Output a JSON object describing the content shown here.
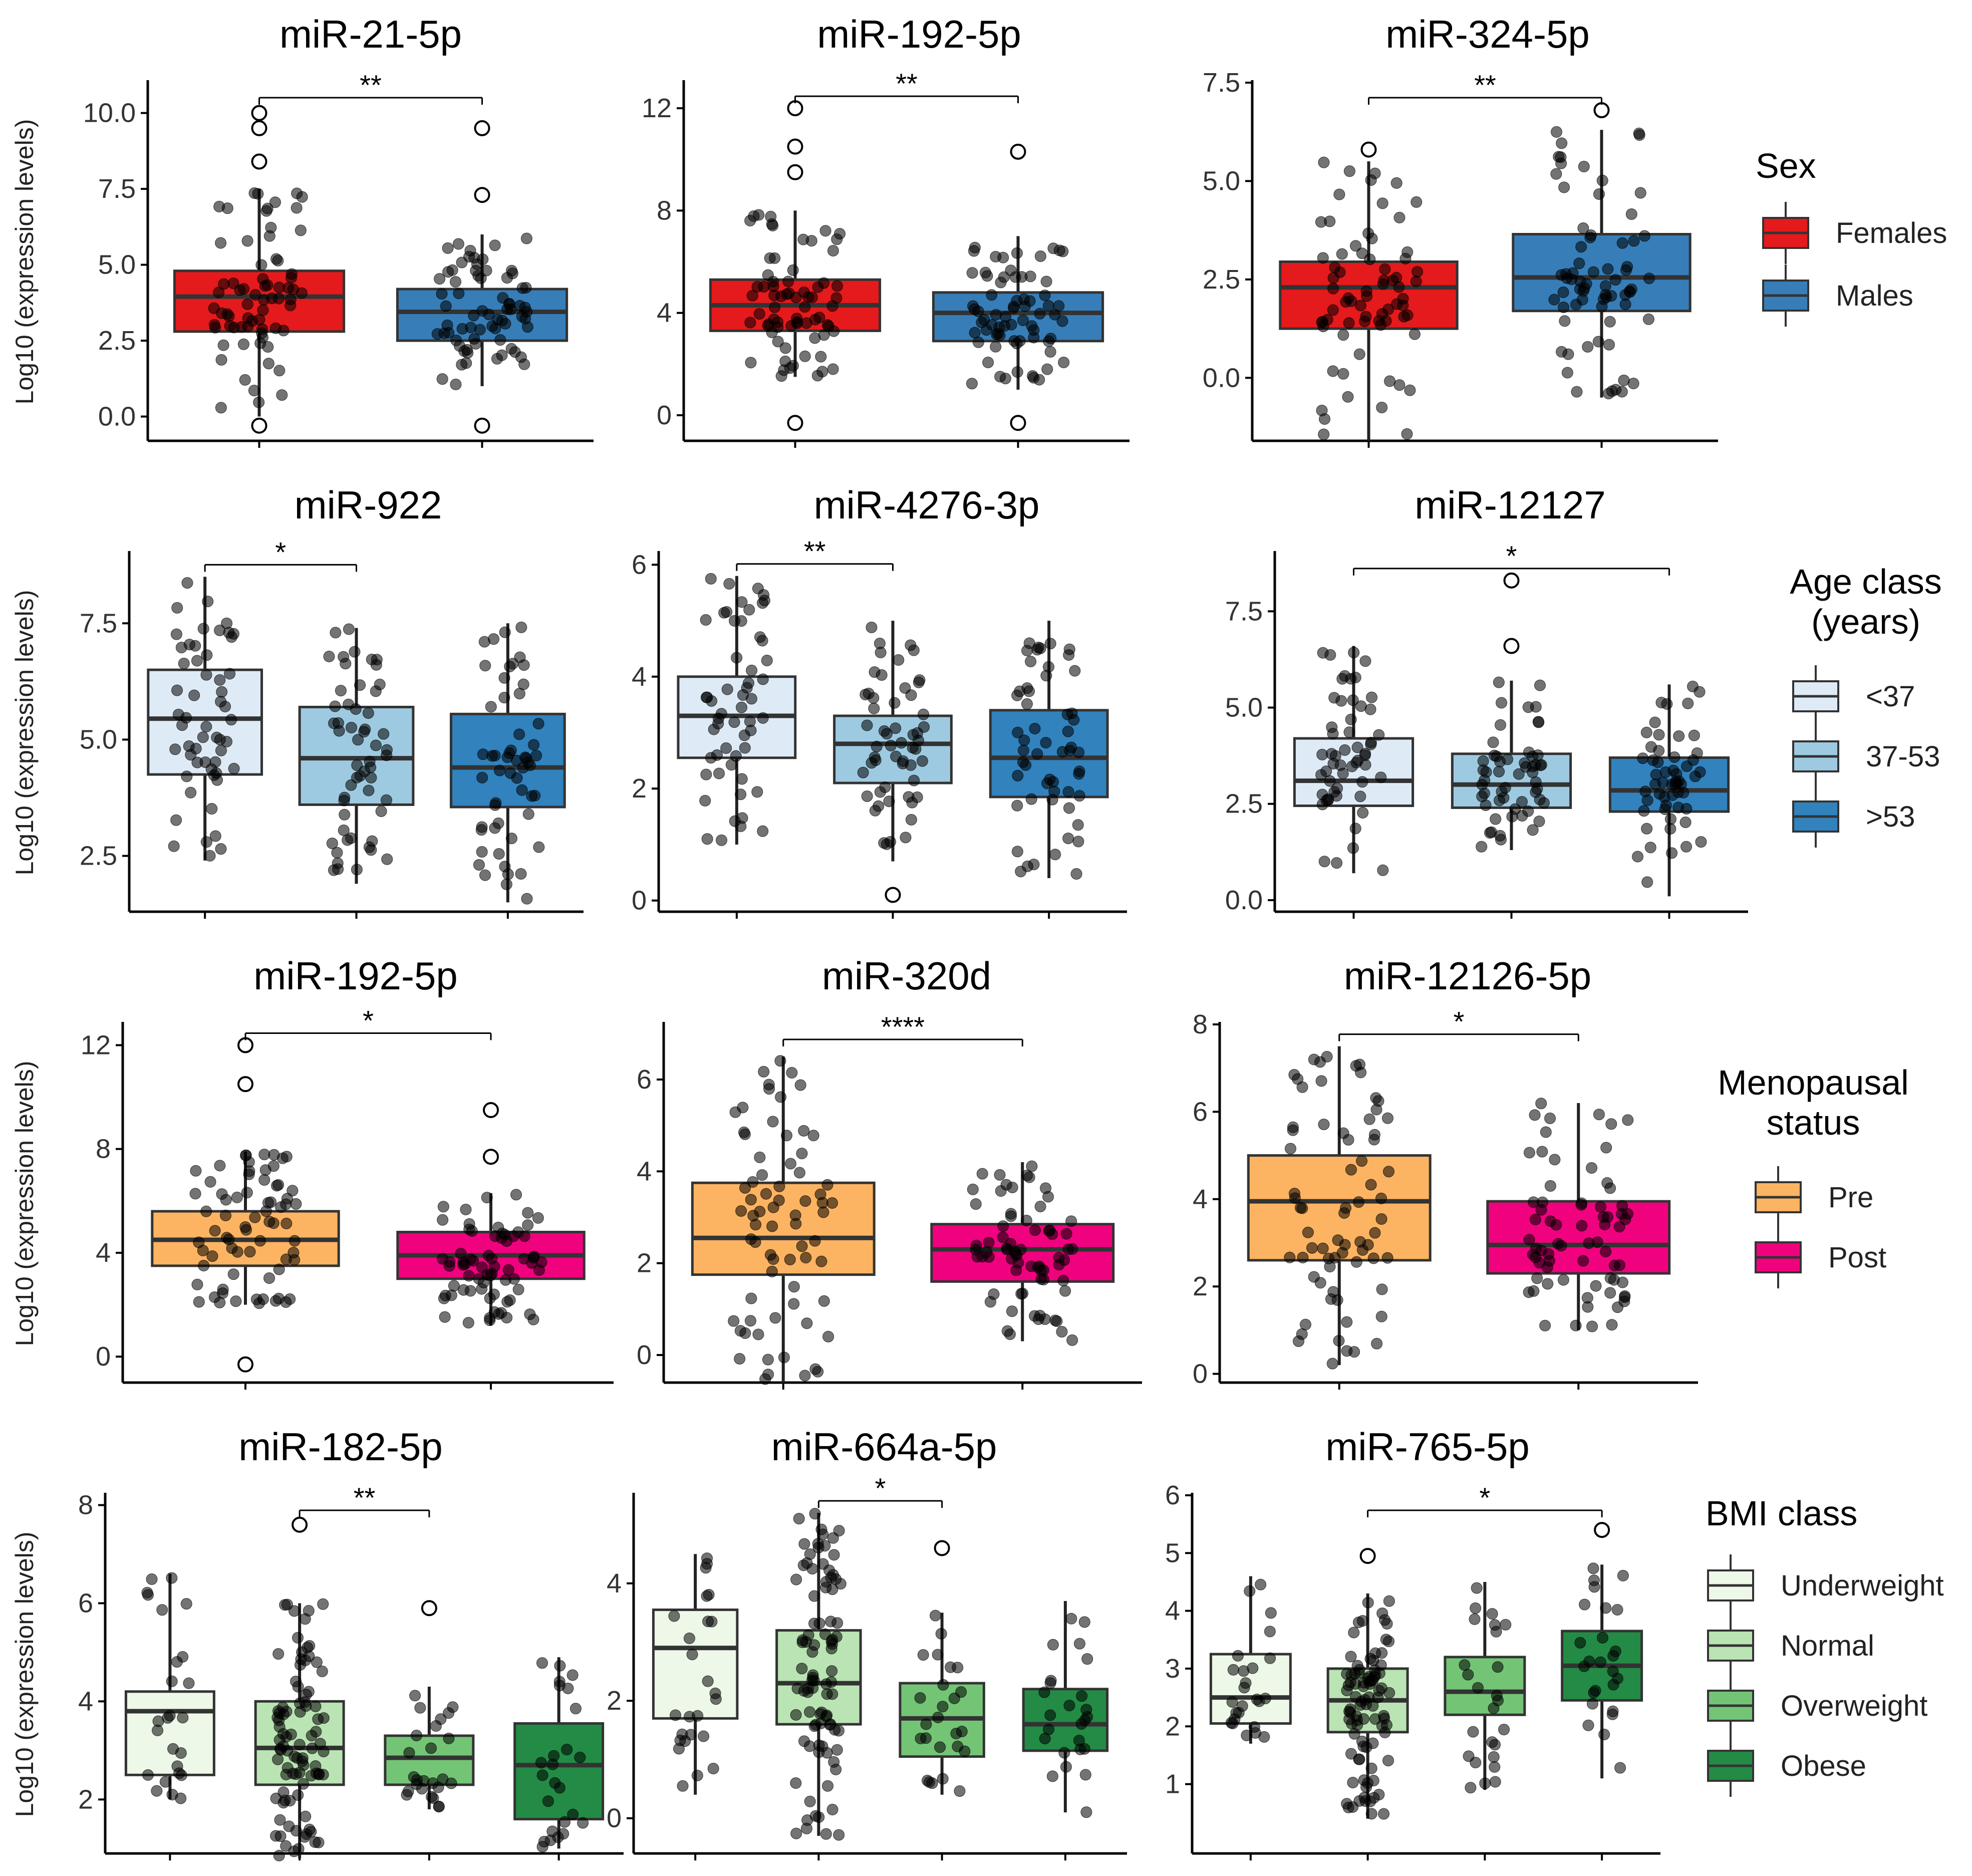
{
  "legends": [
    {
      "title_lines": [
        "Sex"
      ],
      "items": [
        "Females",
        "Males"
      ],
      "colors": [
        "#e41a1c",
        "#377eb8"
      ]
    },
    {
      "title_lines": [
        "Age class",
        "(years)"
      ],
      "items": [
        "<37",
        "37-53",
        ">53"
      ],
      "colors": [
        "#deebf7",
        "#9ecae1",
        "#3182bd"
      ]
    },
    {
      "title_lines": [
        "Menopausal",
        "status"
      ],
      "items": [
        "Pre",
        "Post"
      ],
      "colors": [
        "#fdb462",
        "#f0027f"
      ]
    },
    {
      "title_lines": [
        "BMI class"
      ],
      "items": [
        "Underweight",
        "Normal",
        "Overweight",
        "Obese"
      ],
      "colors": [
        "#edf8e9",
        "#bae4b3",
        "#74c476",
        "#238b45"
      ]
    }
  ],
  "chart_data": [
    {
      "type": "box",
      "title": "miR-21-5p",
      "ylabel": "Log10 (expression levels)",
      "ylim": [
        -0.8,
        11.0
      ],
      "yticks": [
        "0.0",
        "2.5",
        "5.0",
        "7.5",
        "10.0"
      ],
      "significance": {
        "from": 0,
        "to": 1,
        "label": "**"
      },
      "groups": [
        {
          "name": "Females",
          "min": 0.0,
          "q1": 2.8,
          "median": 3.95,
          "q3": 4.8,
          "max": 7.5,
          "outliers": [
            8.4,
            9.5,
            10.0,
            -0.3
          ]
        },
        {
          "name": "Males",
          "min": 1.0,
          "q1": 2.5,
          "median": 3.45,
          "q3": 4.2,
          "max": 6.0,
          "outliers": [
            7.3,
            9.5,
            -0.3
          ]
        }
      ]
    },
    {
      "type": "box",
      "title": "miR-192-5p",
      "ylabel": "",
      "ylim": [
        -1.0,
        13.0
      ],
      "yticks": [
        "0",
        "4",
        "8",
        "12"
      ],
      "significance": {
        "from": 0,
        "to": 1,
        "label": "**"
      },
      "groups": [
        {
          "name": "Females",
          "min": 1.5,
          "q1": 3.3,
          "median": 4.3,
          "q3": 5.3,
          "max": 8.0,
          "outliers": [
            9.5,
            10.5,
            12.0,
            -0.3
          ]
        },
        {
          "name": "Males",
          "min": 1.0,
          "q1": 2.9,
          "median": 4.0,
          "q3": 4.8,
          "max": 7.0,
          "outliers": [
            10.3,
            -0.3
          ]
        }
      ]
    },
    {
      "type": "box",
      "title": "miR-324-5p",
      "ylabel": "",
      "ylim": [
        -1.6,
        7.5
      ],
      "yticks": [
        "0.0",
        "2.5",
        "5.0",
        "7.5"
      ],
      "significance": {
        "from": 0,
        "to": 1,
        "label": "**"
      },
      "groups": [
        {
          "name": "Females",
          "min": -1.6,
          "q1": 1.25,
          "median": 2.3,
          "q3": 2.95,
          "max": 5.5,
          "outliers": [
            5.8
          ]
        },
        {
          "name": "Males",
          "min": -0.5,
          "q1": 1.7,
          "median": 2.55,
          "q3": 3.65,
          "max": 6.3,
          "outliers": [
            6.8
          ]
        }
      ]
    },
    {
      "type": "box",
      "title": "miR-922",
      "ylabel": "Log10 (expression levels)",
      "ylim": [
        1.3,
        9.0
      ],
      "yticks": [
        "2.5",
        "5.0",
        "7.5"
      ],
      "significance": {
        "from": 0,
        "to": 1,
        "label": "*"
      },
      "groups": [
        {
          "name": "<37",
          "min": 2.4,
          "q1": 4.25,
          "median": 5.45,
          "q3": 6.5,
          "max": 8.5,
          "outliers": []
        },
        {
          "name": "37-53",
          "min": 1.9,
          "q1": 3.6,
          "median": 4.6,
          "q3": 5.7,
          "max": 7.4,
          "outliers": []
        },
        {
          "name": ">53",
          "min": 1.5,
          "q1": 3.55,
          "median": 4.4,
          "q3": 5.55,
          "max": 7.5,
          "outliers": []
        }
      ]
    },
    {
      "type": "box",
      "title": "miR-4276-3p",
      "ylabel": "",
      "ylim": [
        -0.2,
        6.2
      ],
      "yticks": [
        "0",
        "2",
        "4",
        "6"
      ],
      "significance": {
        "from": 0,
        "to": 1,
        "label": "**"
      },
      "groups": [
        {
          "name": "<37",
          "min": 1.0,
          "q1": 2.55,
          "median": 3.3,
          "q3": 4.0,
          "max": 5.8,
          "outliers": []
        },
        {
          "name": "37-53",
          "min": 0.7,
          "q1": 2.1,
          "median": 2.8,
          "q3": 3.3,
          "max": 5.0,
          "outliers": [
            0.1
          ]
        },
        {
          "name": ">53",
          "min": 0.4,
          "q1": 1.85,
          "median": 2.55,
          "q3": 3.4,
          "max": 5.0,
          "outliers": []
        }
      ]
    },
    {
      "type": "box",
      "title": "miR-12127",
      "ylabel": "",
      "ylim": [
        -0.3,
        9.0
      ],
      "yticks": [
        "0.0",
        "2.5",
        "5.0",
        "7.5"
      ],
      "significance": {
        "from": 0,
        "to": 2,
        "label": "*"
      },
      "groups": [
        {
          "name": "<37",
          "min": 0.7,
          "q1": 2.45,
          "median": 3.1,
          "q3": 4.2,
          "max": 6.6,
          "outliers": []
        },
        {
          "name": "37-53",
          "min": 1.3,
          "q1": 2.4,
          "median": 3.0,
          "q3": 3.8,
          "max": 5.7,
          "outliers": [
            6.6,
            8.3
          ]
        },
        {
          "name": ">53",
          "min": 0.1,
          "q1": 2.3,
          "median": 2.85,
          "q3": 3.7,
          "max": 5.6,
          "outliers": []
        }
      ]
    },
    {
      "type": "box",
      "title": "miR-192-5p",
      "ylabel": "Log10 (expression levels)",
      "ylim": [
        -1.0,
        12.8
      ],
      "yticks": [
        "0",
        "4",
        "8",
        "12"
      ],
      "significance": {
        "from": 0,
        "to": 1,
        "label": "*"
      },
      "groups": [
        {
          "name": "Pre",
          "min": 2.0,
          "q1": 3.5,
          "median": 4.5,
          "q3": 5.6,
          "max": 7.9,
          "outliers": [
            10.5,
            12.0,
            -0.3
          ]
        },
        {
          "name": "Post",
          "min": 1.2,
          "q1": 3.0,
          "median": 3.9,
          "q3": 4.8,
          "max": 6.3,
          "outliers": [
            7.7,
            9.5
          ]
        }
      ]
    },
    {
      "type": "box",
      "title": "miR-320d",
      "ylabel": "",
      "ylim": [
        -0.6,
        7.2
      ],
      "yticks": [
        "0",
        "2",
        "4",
        "6"
      ],
      "significance": {
        "from": 0,
        "to": 1,
        "label": "****"
      },
      "groups": [
        {
          "name": "Pre",
          "min": -0.6,
          "q1": 1.75,
          "median": 2.55,
          "q3": 3.75,
          "max": 6.5,
          "outliers": []
        },
        {
          "name": "Post",
          "min": 0.3,
          "q1": 1.6,
          "median": 2.3,
          "q3": 2.85,
          "max": 4.2,
          "outliers": []
        }
      ]
    },
    {
      "type": "box",
      "title": "miR-12126-5p",
      "ylabel": "",
      "ylim": [
        -0.2,
        8.0
      ],
      "yticks": [
        "0",
        "2",
        "4",
        "6",
        "8"
      ],
      "significance": {
        "from": 0,
        "to": 1,
        "label": "*"
      },
      "groups": [
        {
          "name": "Pre",
          "min": 0.2,
          "q1": 2.6,
          "median": 3.95,
          "q3": 5.0,
          "max": 7.5,
          "outliers": []
        },
        {
          "name": "Post",
          "min": 1.0,
          "q1": 2.3,
          "median": 2.95,
          "q3": 3.95,
          "max": 6.2,
          "outliers": []
        }
      ]
    },
    {
      "type": "box",
      "title": "miR-182-5p",
      "ylabel": "Log10 (expression levels)",
      "ylim": [
        0.9,
        8.2
      ],
      "yticks": [
        "2",
        "4",
        "6",
        "8"
      ],
      "significance": {
        "from": 1,
        "to": 2,
        "label": "**"
      },
      "groups": [
        {
          "name": "Underweight",
          "min": 2.0,
          "q1": 2.5,
          "median": 3.8,
          "q3": 4.2,
          "max": 6.6,
          "outliers": []
        },
        {
          "name": "Normal",
          "min": 0.8,
          "q1": 2.3,
          "median": 3.05,
          "q3": 4.0,
          "max": 6.0,
          "outliers": [
            7.6
          ]
        },
        {
          "name": "Overweight",
          "min": 1.8,
          "q1": 2.3,
          "median": 2.85,
          "q3": 3.3,
          "max": 4.3,
          "outliers": [
            5.9
          ]
        },
        {
          "name": "Obese",
          "min": 1.0,
          "q1": 1.6,
          "median": 2.7,
          "q3": 3.55,
          "max": 4.9,
          "outliers": []
        }
      ]
    },
    {
      "type": "box",
      "title": "miR-664a-5p",
      "ylabel": "",
      "ylim": [
        -0.6,
        5.5
      ],
      "yticks": [
        "0",
        "2",
        "4"
      ],
      "significance": {
        "from": 1,
        "to": 2,
        "label": "*"
      },
      "groups": [
        {
          "name": "Underweight",
          "min": 0.4,
          "q1": 1.7,
          "median": 2.9,
          "q3": 3.55,
          "max": 4.5,
          "outliers": []
        },
        {
          "name": "Normal",
          "min": -0.3,
          "q1": 1.6,
          "median": 2.3,
          "q3": 3.2,
          "max": 5.2,
          "outliers": []
        },
        {
          "name": "Overweight",
          "min": 0.4,
          "q1": 1.05,
          "median": 1.7,
          "q3": 2.3,
          "max": 3.5,
          "outliers": [
            4.6
          ]
        },
        {
          "name": "Obese",
          "min": 0.1,
          "q1": 1.15,
          "median": 1.6,
          "q3": 2.2,
          "max": 3.7,
          "outliers": []
        }
      ]
    },
    {
      "type": "box",
      "title": "miR-765-5p",
      "ylabel": "",
      "ylim": [
        -0.2,
        6.0
      ],
      "yticks": [
        "1",
        "2",
        "3",
        "4",
        "5",
        "6"
      ],
      "significance": {
        "from": 1,
        "to": 3,
        "label": "*"
      },
      "groups": [
        {
          "name": "Underweight",
          "min": 1.7,
          "q1": 2.05,
          "median": 2.5,
          "q3": 3.25,
          "max": 4.6,
          "outliers": []
        },
        {
          "name": "Normal",
          "min": 0.4,
          "q1": 1.9,
          "median": 2.45,
          "q3": 3.0,
          "max": 4.3,
          "outliers": [
            4.95
          ]
        },
        {
          "name": "Overweight",
          "min": 0.9,
          "q1": 2.2,
          "median": 2.6,
          "q3": 3.2,
          "max": 4.5,
          "outliers": []
        },
        {
          "name": "Obese",
          "min": 1.1,
          "q1": 2.45,
          "median": 3.05,
          "q3": 3.65,
          "max": 4.8,
          "outliers": [
            5.4
          ]
        }
      ]
    }
  ]
}
